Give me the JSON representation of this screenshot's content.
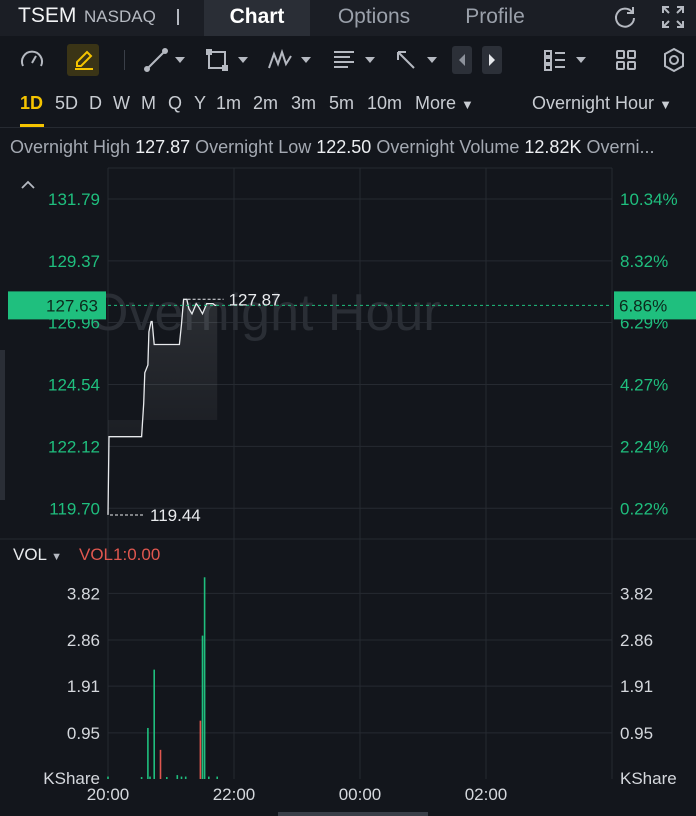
{
  "header": {
    "ticker": "TSEM",
    "exchange": "NASDAQ",
    "tabs": [
      {
        "label": "Chart",
        "active": true
      },
      {
        "label": "Options",
        "active": false
      },
      {
        "label": "Profile",
        "active": false
      }
    ],
    "icons": [
      "refresh-icon",
      "fullscreen-icon"
    ]
  },
  "toolbar": {
    "icons": [
      "gauge-icon",
      "draw-pencil-icon",
      "line-tool-icon",
      "rectangle-tool-icon",
      "pattern-tool-icon",
      "fibonacci-tool-icon",
      "arrow-tool-icon",
      "prev-icon",
      "next-icon",
      "indicator-list-icon",
      "layout-grid-icon",
      "settings-icon"
    ],
    "active_icon": "draw-pencil-icon"
  },
  "periods": {
    "items": [
      "1D",
      "5D",
      "D",
      "W",
      "M",
      "Q",
      "Y",
      "1m",
      "2m",
      "3m",
      "5m",
      "10m"
    ],
    "active": "1D",
    "more_label": "More",
    "session_label": "Overnight Hour"
  },
  "stats": {
    "items": [
      {
        "label": "Overnight High",
        "value": "127.87"
      },
      {
        "label": "Overnight Low",
        "value": "122.50"
      },
      {
        "label": "Overnight Volume",
        "value": "12.82K"
      },
      {
        "label": "Overni...",
        "value": ""
      }
    ]
  },
  "colors": {
    "background": "#13161c",
    "up": "#1fbf7e",
    "down": "#e0574f",
    "accent": "#f5c400",
    "grid": "#262a31"
  },
  "chart_data": [
    {
      "type": "line",
      "watermark": "Overnight Hour",
      "y_left_ticks": [
        "131.79",
        "129.37",
        "126.96",
        "124.54",
        "122.12",
        "119.70"
      ],
      "y_right_ticks": [
        "10.34%",
        "8.32%",
        "6.29%",
        "4.27%",
        "2.24%",
        "0.22%"
      ],
      "x_ticks": [
        "20:00",
        "22:00",
        "00:00",
        "02:00"
      ],
      "current_price": "127.63",
      "current_change": "6.86%",
      "high_label": "127.87",
      "low_label": "119.44",
      "ylim": [
        118.5,
        133.0
      ],
      "x_range": [
        0,
        480
      ],
      "series": [
        {
          "x": [
            0,
            1,
            3,
            32,
            34,
            35,
            38,
            39,
            41,
            42,
            44,
            48,
            52,
            56,
            62,
            68,
            70,
            72,
            75,
            77,
            80,
            84,
            86,
            90,
            94,
            100,
            102,
            104
          ],
          "y": [
            119.44,
            122.5,
            122.5,
            122.5,
            123.8,
            125.0,
            125.3,
            126.6,
            127.0,
            127.0,
            126.1,
            126.1,
            126.1,
            126.1,
            126.1,
            126.1,
            126.9,
            127.87,
            127.87,
            127.5,
            127.3,
            127.7,
            127.6,
            127.3,
            127.7,
            127.7,
            127.63,
            127.63
          ]
        }
      ]
    },
    {
      "type": "bar",
      "legend": "VOL",
      "indicator": "VOL1:0.00",
      "unit": "KShare",
      "y_ticks": [
        "3.82",
        "2.86",
        "1.91",
        "0.95"
      ],
      "ylim": [
        0,
        4.3
      ],
      "x_range": [
        0,
        480
      ],
      "bars": [
        {
          "x": 0,
          "value": 0.05,
          "dir": "up"
        },
        {
          "x": 32,
          "value": 0.04,
          "dir": "up"
        },
        {
          "x": 38,
          "value": 1.05,
          "dir": "up"
        },
        {
          "x": 40,
          "value": 0.05,
          "dir": "up"
        },
        {
          "x": 44,
          "value": 2.25,
          "dir": "up"
        },
        {
          "x": 50,
          "value": 0.6,
          "dir": "down"
        },
        {
          "x": 56,
          "value": 0.04,
          "dir": "up"
        },
        {
          "x": 66,
          "value": 0.08,
          "dir": "up"
        },
        {
          "x": 70,
          "value": 0.05,
          "dir": "up"
        },
        {
          "x": 74,
          "value": 0.05,
          "dir": "up"
        },
        {
          "x": 88,
          "value": 1.2,
          "dir": "down"
        },
        {
          "x": 90,
          "value": 2.95,
          "dir": "up"
        },
        {
          "x": 92,
          "value": 4.15,
          "dir": "up"
        },
        {
          "x": 96,
          "value": 0.05,
          "dir": "up"
        },
        {
          "x": 104,
          "value": 0.05,
          "dir": "up"
        }
      ]
    }
  ]
}
